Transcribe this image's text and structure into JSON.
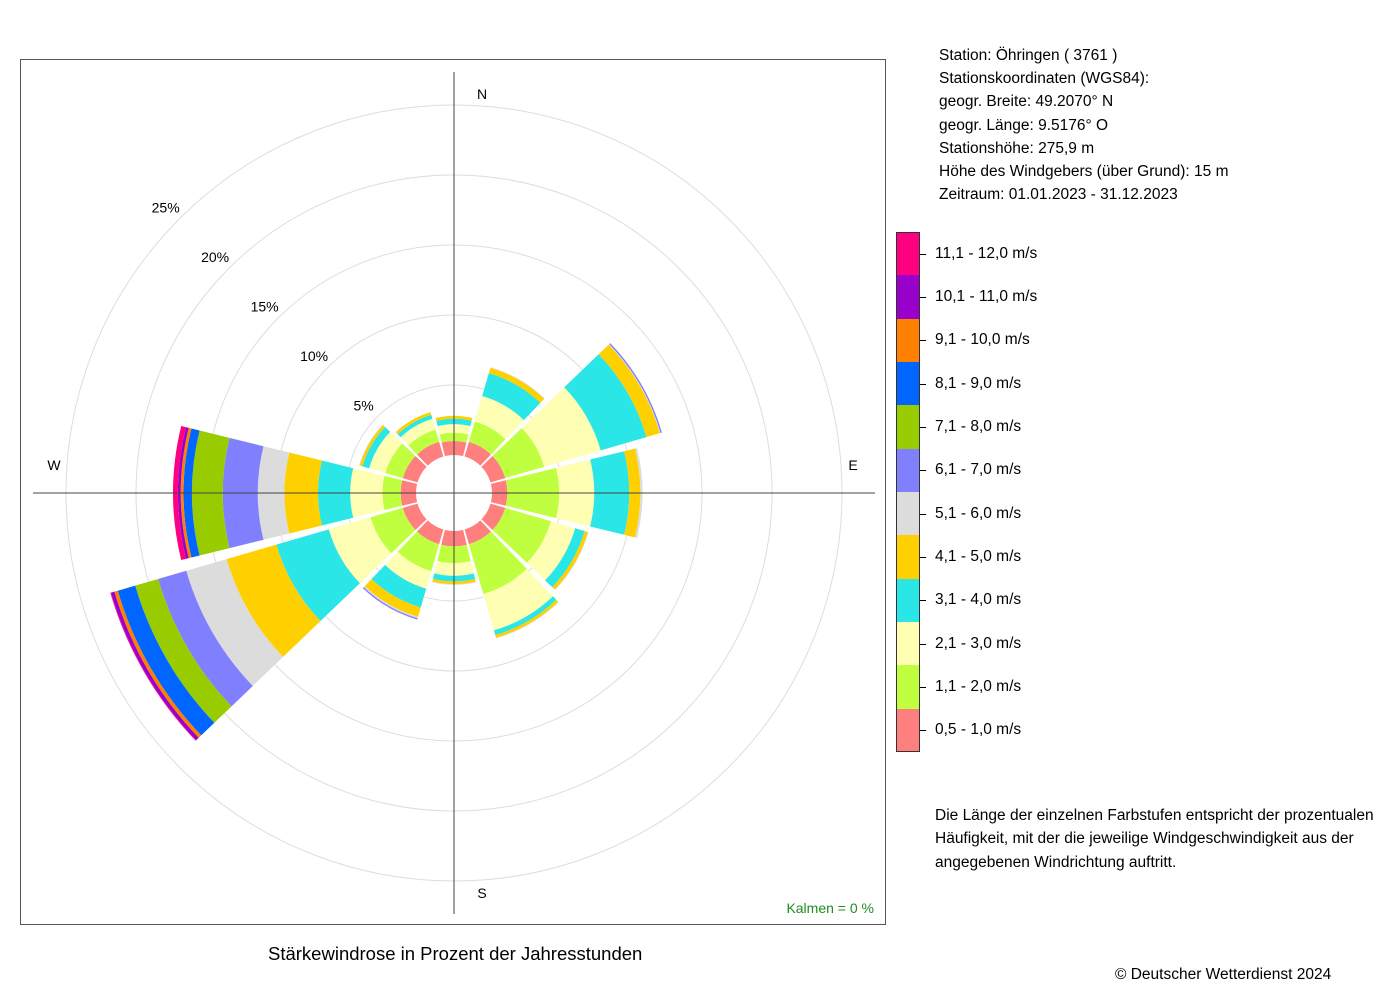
{
  "info": {
    "station": "Station:  Öhringen  ( 3761 )",
    "coords_header": "Stationskoordinaten (WGS84):",
    "lat": "geogr. Breite: 49.2070° N",
    "lon": "geogr. Länge:   9.5176° O",
    "height": "Stationshöhe: 275,9 m",
    "sensor": "Höhe des Windgebers (über Grund): 15 m",
    "period": "Zeitraum: 01.01.2023 - 31.12.2023"
  },
  "note": {
    "line1": "Die Länge der einzelnen Farbstufen entspricht der prozentualen",
    "line2": "Häufigkeit, mit der die jeweilige Windgeschwindigkeit aus der",
    "line3": "angegebenen Windrichtung auftritt."
  },
  "footer": {
    "title": "Stärkewindrose in Prozent der Jahresstunden",
    "copyright": "© Deutscher Wetterdienst  2024"
  },
  "chart_data": {
    "type": "wind-rose",
    "title": "Stärkewindrose in Prozent der Jahresstunden",
    "unit": "%",
    "calms": "Kalmen  =  0 %",
    "radial_max": 25,
    "radial_ticks": [
      5,
      10,
      15,
      20,
      25
    ],
    "radial_tick_labels": [
      "5%",
      "10%",
      "15%",
      "20%",
      "25%"
    ],
    "compass_labels": [
      "N",
      "E",
      "S",
      "W"
    ],
    "grid": true,
    "legend_position": "right",
    "speed_classes": [
      {
        "label": "0,5 - 1,0 m/s",
        "color": "#FF7F7F"
      },
      {
        "label": "1,1 - 2,0 m/s",
        "color": "#BFFF3F"
      },
      {
        "label": "2,1 - 3,0 m/s",
        "color": "#FFFFB3"
      },
      {
        "label": "3,1 - 4,0 m/s",
        "color": "#2AE6E6"
      },
      {
        "label": "4,1 - 5,0 m/s",
        "color": "#FFD000"
      },
      {
        "label": "5,1 - 6,0 m/s",
        "color": "#DCDCDC"
      },
      {
        "label": "6,1 - 7,0 m/s",
        "color": "#8080FF"
      },
      {
        "label": "7,1 - 8,0 m/s",
        "color": "#99CC00"
      },
      {
        "label": "8,1 - 9,0 m/s",
        "color": "#0066FF"
      },
      {
        "label": "9,1 - 10,0 m/s",
        "color": "#FF8000"
      },
      {
        "label": "10,1 - 11,0 m/s",
        "color": "#9900CC"
      },
      {
        "label": "11,1 - 12,0 m/s",
        "color": "#FF0080"
      }
    ],
    "directions_deg": [
      0,
      30,
      60,
      90,
      120,
      150,
      180,
      210,
      240,
      270,
      300,
      330
    ],
    "cumulative_percent": [
      [
        1.0,
        1.6,
        2.2,
        2.6,
        2.8
      ],
      [
        1.1,
        2.6,
        4.5,
        6.2,
        6.6,
        6.65
      ],
      [
        1.1,
        4.0,
        8.2,
        11.6,
        12.6,
        12.65,
        12.75
      ],
      [
        1.1,
        4.8,
        7.3,
        9.8,
        10.6,
        10.75
      ],
      [
        1.1,
        4.5,
        6.3,
        7.0,
        7.25,
        7.3
      ],
      [
        1.1,
        4.8,
        7.5,
        7.85,
        8.05,
        8.1
      ],
      [
        1.1,
        2.3,
        3.2,
        3.6,
        3.8,
        3.85
      ],
      [
        1.1,
        3.1,
        4.4,
        5.8,
        6.5,
        6.6,
        6.7
      ],
      [
        1.1,
        3.5,
        6.6,
        10.5,
        14.2,
        17.2,
        19.3,
        21.0,
        22.3,
        22.55,
        22.8,
        22.85
      ],
      [
        1.1,
        2.4,
        4.7,
        7.0,
        9.4,
        11.3,
        13.8,
        16.0,
        16.6,
        16.8,
        17.0,
        17.35
      ],
      [
        1.1,
        2.4,
        3.6,
        4.1,
        4.3,
        4.35
      ],
      [
        1.1,
        2.0,
        2.8,
        3.1,
        3.3
      ]
    ]
  }
}
